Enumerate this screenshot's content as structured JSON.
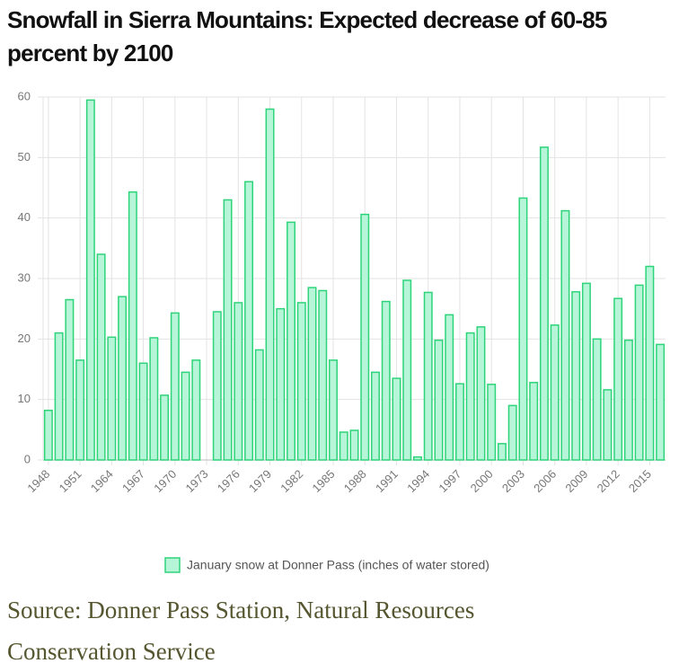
{
  "chart_data": {
    "type": "bar",
    "title": "Snowfall in Sierra Mountains: Expected decrease of 60-85 percent by 2100",
    "categories": [
      "1948",
      null,
      null,
      "1951",
      null,
      null,
      "1964",
      null,
      null,
      "1967",
      null,
      null,
      "1970",
      null,
      null,
      "1973",
      null,
      null,
      "1976",
      null,
      null,
      "1979",
      null,
      null,
      "1982",
      null,
      null,
      "1985",
      null,
      null,
      "1988",
      null,
      null,
      "1991",
      null,
      null,
      "1994",
      null,
      null,
      "1997",
      null,
      null,
      "2000",
      null,
      null,
      "2003",
      null,
      null,
      "2006",
      null,
      null,
      "2009",
      null,
      null,
      "2012",
      null,
      null,
      "2015",
      null
    ],
    "series": [
      {
        "name": "January snow at Donner Pass (inches of water stored)",
        "color": "#2ed47a",
        "fill": "#b6f5d8",
        "values": [
          8.2,
          21,
          26.5,
          16.5,
          59.5,
          34,
          20.3,
          27,
          44.3,
          16,
          20.2,
          10.7,
          24.3,
          14.5,
          16.5,
          null,
          24.5,
          43,
          26,
          46,
          18.2,
          58,
          25,
          39.3,
          26,
          28.5,
          28,
          16.5,
          4.6,
          4.9,
          40.6,
          14.5,
          26.2,
          13.5,
          29.7,
          0.5,
          27.7,
          19.8,
          24,
          12.6,
          21,
          22,
          12.5,
          2.7,
          9,
          43.3,
          12.8,
          51.7,
          22.3,
          41.2,
          27.8,
          29.2,
          20,
          11.6,
          26.7,
          19.8,
          28.9,
          32,
          19.1
        ]
      }
    ],
    "ylim": [
      0,
      60
    ],
    "yticks": [
      0,
      10,
      20,
      30,
      40,
      50,
      60
    ],
    "grid": true,
    "source": "Source: Donner Pass Station, Natural Resources Conservation Service"
  }
}
